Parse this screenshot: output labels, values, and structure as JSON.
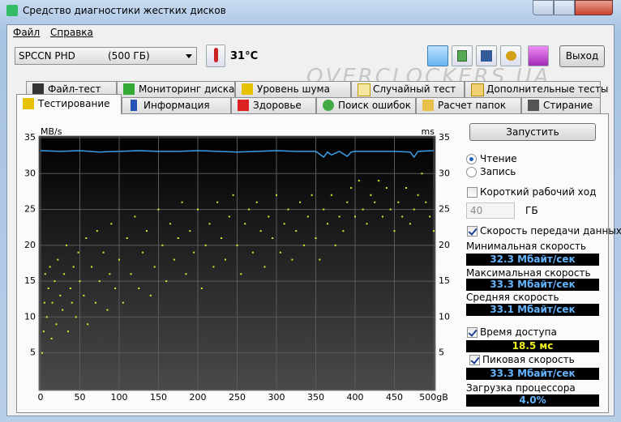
{
  "window": {
    "title": "Средство диагностики жестких дисков"
  },
  "menu": [
    "Файл",
    "Справка"
  ],
  "toolbar": {
    "drive": "SPCCN  PHD",
    "drive_size": "(500 ГБ)",
    "temperature": "31°C",
    "exit": "Выход"
  },
  "watermark": "OVERCLOCKERS.UA",
  "tabs_top": [
    "Файл-тест",
    "Мониторинг диска",
    "Уровень шума",
    "Случайный тест",
    "Дополнительные тесты"
  ],
  "tabs_bottom": [
    "Тестирование",
    "Информация",
    "Здоровье",
    "Поиск ошибок",
    "Расчет папок",
    "Стирание"
  ],
  "chart_data": {
    "type": "line-scatter",
    "y_label": "MB/s",
    "y2_label": "ms",
    "xlim": [
      0,
      500
    ],
    "xticks": [
      0,
      50,
      100,
      150,
      200,
      250,
      300,
      350,
      400,
      450,
      {
        "value": 500,
        "label": "500gB"
      }
    ],
    "ylim": [
      0,
      35
    ],
    "yticks": [
      5,
      10,
      15,
      20,
      25,
      30,
      35
    ],
    "y2lim": [
      0,
      35
    ],
    "y2ticks": [
      5,
      10,
      15,
      20,
      25,
      30,
      35
    ],
    "grid": true,
    "series": [
      {
        "color": "#3a9ee8",
        "x": [
          0,
          25,
          50,
          75,
          100,
          125,
          150,
          175,
          200,
          225,
          250,
          275,
          300,
          325,
          350,
          360,
          365,
          370,
          380,
          390,
          395,
          400,
          425,
          450,
          470,
          475,
          480,
          500
        ],
        "values": [
          33.2,
          33.1,
          33.2,
          33.0,
          33.1,
          33.2,
          33.1,
          33.1,
          33.2,
          33.1,
          33.0,
          33.1,
          33.2,
          33.1,
          33.1,
          32.3,
          33.0,
          32.6,
          33.1,
          32.4,
          33.0,
          33.1,
          33.1,
          33.1,
          33.0,
          32.3,
          33.1,
          33.2
        ]
      },
      {
        "color": "#e6e62e",
        "axis": "y2",
        "marker": "dot",
        "x": [
          2,
          4,
          5,
          6,
          8,
          10,
          12,
          14,
          15,
          18,
          20,
          22,
          25,
          28,
          30,
          33,
          35,
          38,
          40,
          42,
          45,
          48,
          50,
          55,
          58,
          60,
          65,
          70,
          72,
          75,
          80,
          85,
          88,
          90,
          95,
          100,
          105,
          110,
          115,
          120,
          125,
          130,
          135,
          140,
          145,
          150,
          155,
          160,
          165,
          170,
          175,
          180,
          185,
          190,
          195,
          200,
          205,
          210,
          215,
          220,
          225,
          230,
          235,
          240,
          245,
          250,
          255,
          260,
          265,
          270,
          275,
          280,
          285,
          290,
          295,
          300,
          305,
          310,
          315,
          320,
          325,
          330,
          335,
          340,
          345,
          350,
          355,
          360,
          365,
          370,
          375,
          380,
          385,
          390,
          395,
          400,
          405,
          410,
          415,
          420,
          425,
          430,
          435,
          440,
          445,
          450,
          455,
          460,
          465,
          470,
          475,
          480,
          485,
          490,
          495,
          500
        ],
        "values": [
          5,
          8,
          12,
          16,
          10,
          14,
          17,
          7,
          12,
          15,
          9,
          18,
          13,
          11,
          16,
          20,
          8,
          14,
          12,
          17,
          10,
          19,
          15,
          13,
          21,
          9,
          17,
          12,
          22,
          15,
          19,
          11,
          16,
          23,
          14,
          18,
          12,
          21,
          16,
          24,
          14,
          19,
          22,
          13,
          17,
          25,
          20,
          15,
          23,
          18,
          21,
          26,
          16,
          22,
          19,
          25,
          14,
          20,
          23,
          17,
          26,
          21,
          18,
          24,
          27,
          20,
          16,
          23,
          25,
          19,
          26,
          22,
          17,
          24,
          21,
          27,
          19,
          23,
          25,
          18,
          22,
          26,
          20,
          24,
          27,
          21,
          18,
          25,
          23,
          27,
          20,
          24,
          22,
          26,
          28,
          24,
          29,
          25,
          23,
          27,
          26,
          29,
          24,
          28,
          25,
          22,
          26,
          24,
          28,
          23,
          25,
          27,
          30,
          26,
          24,
          22
        ]
      }
    ]
  },
  "controls": {
    "start": "Запустить",
    "read": "Чтение",
    "write": "Запись",
    "short_stroke": "Короткий рабочий ход",
    "short_stroke_value": "40",
    "short_stroke_unit": "ГБ",
    "transfer_rate": "Скорость передачи данных",
    "min_label": "Минимальная скорость",
    "min_value": "32.3 Мбайт/сек",
    "max_label": "Максимальная скорость",
    "max_value": "33.3 Мбайт/сек",
    "avg_label": "Средняя скорость",
    "avg_value": "33.1 Мбайт/сек",
    "access_label": "Время доступа",
    "access_value": "18.5 мс",
    "burst_label": "Пиковая скорость",
    "burst_value": "33.3 Мбайт/сек",
    "cpu_label": "Загрузка процессора",
    "cpu_value": "4.0%"
  }
}
